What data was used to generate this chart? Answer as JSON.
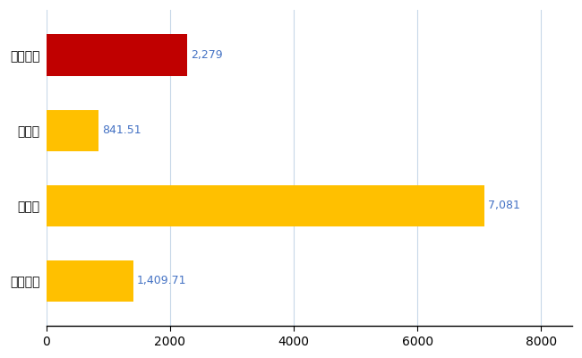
{
  "categories": [
    "全国平均",
    "県最大",
    "県平均",
    "うるま市"
  ],
  "values": [
    1409.71,
    7081,
    841.51,
    2279
  ],
  "bar_colors": [
    "#FFC000",
    "#FFC000",
    "#FFC000",
    "#C00000"
  ],
  "labels": [
    "1,409.71",
    "7,081",
    "841.51",
    "2,279"
  ],
  "xlim": [
    0,
    8500
  ],
  "xticks": [
    0,
    2000,
    4000,
    6000,
    8000
  ],
  "xtick_labels": [
    "0",
    "2000",
    "4000",
    "6000",
    "8000"
  ],
  "background_color": "#FFFFFF",
  "grid_color": "#C8D8E8",
  "bar_height": 0.55,
  "label_fontsize": 9,
  "tick_fontsize": 10,
  "label_color": "#4472C4",
  "figsize": [
    6.5,
    4.0
  ],
  "dpi": 100
}
